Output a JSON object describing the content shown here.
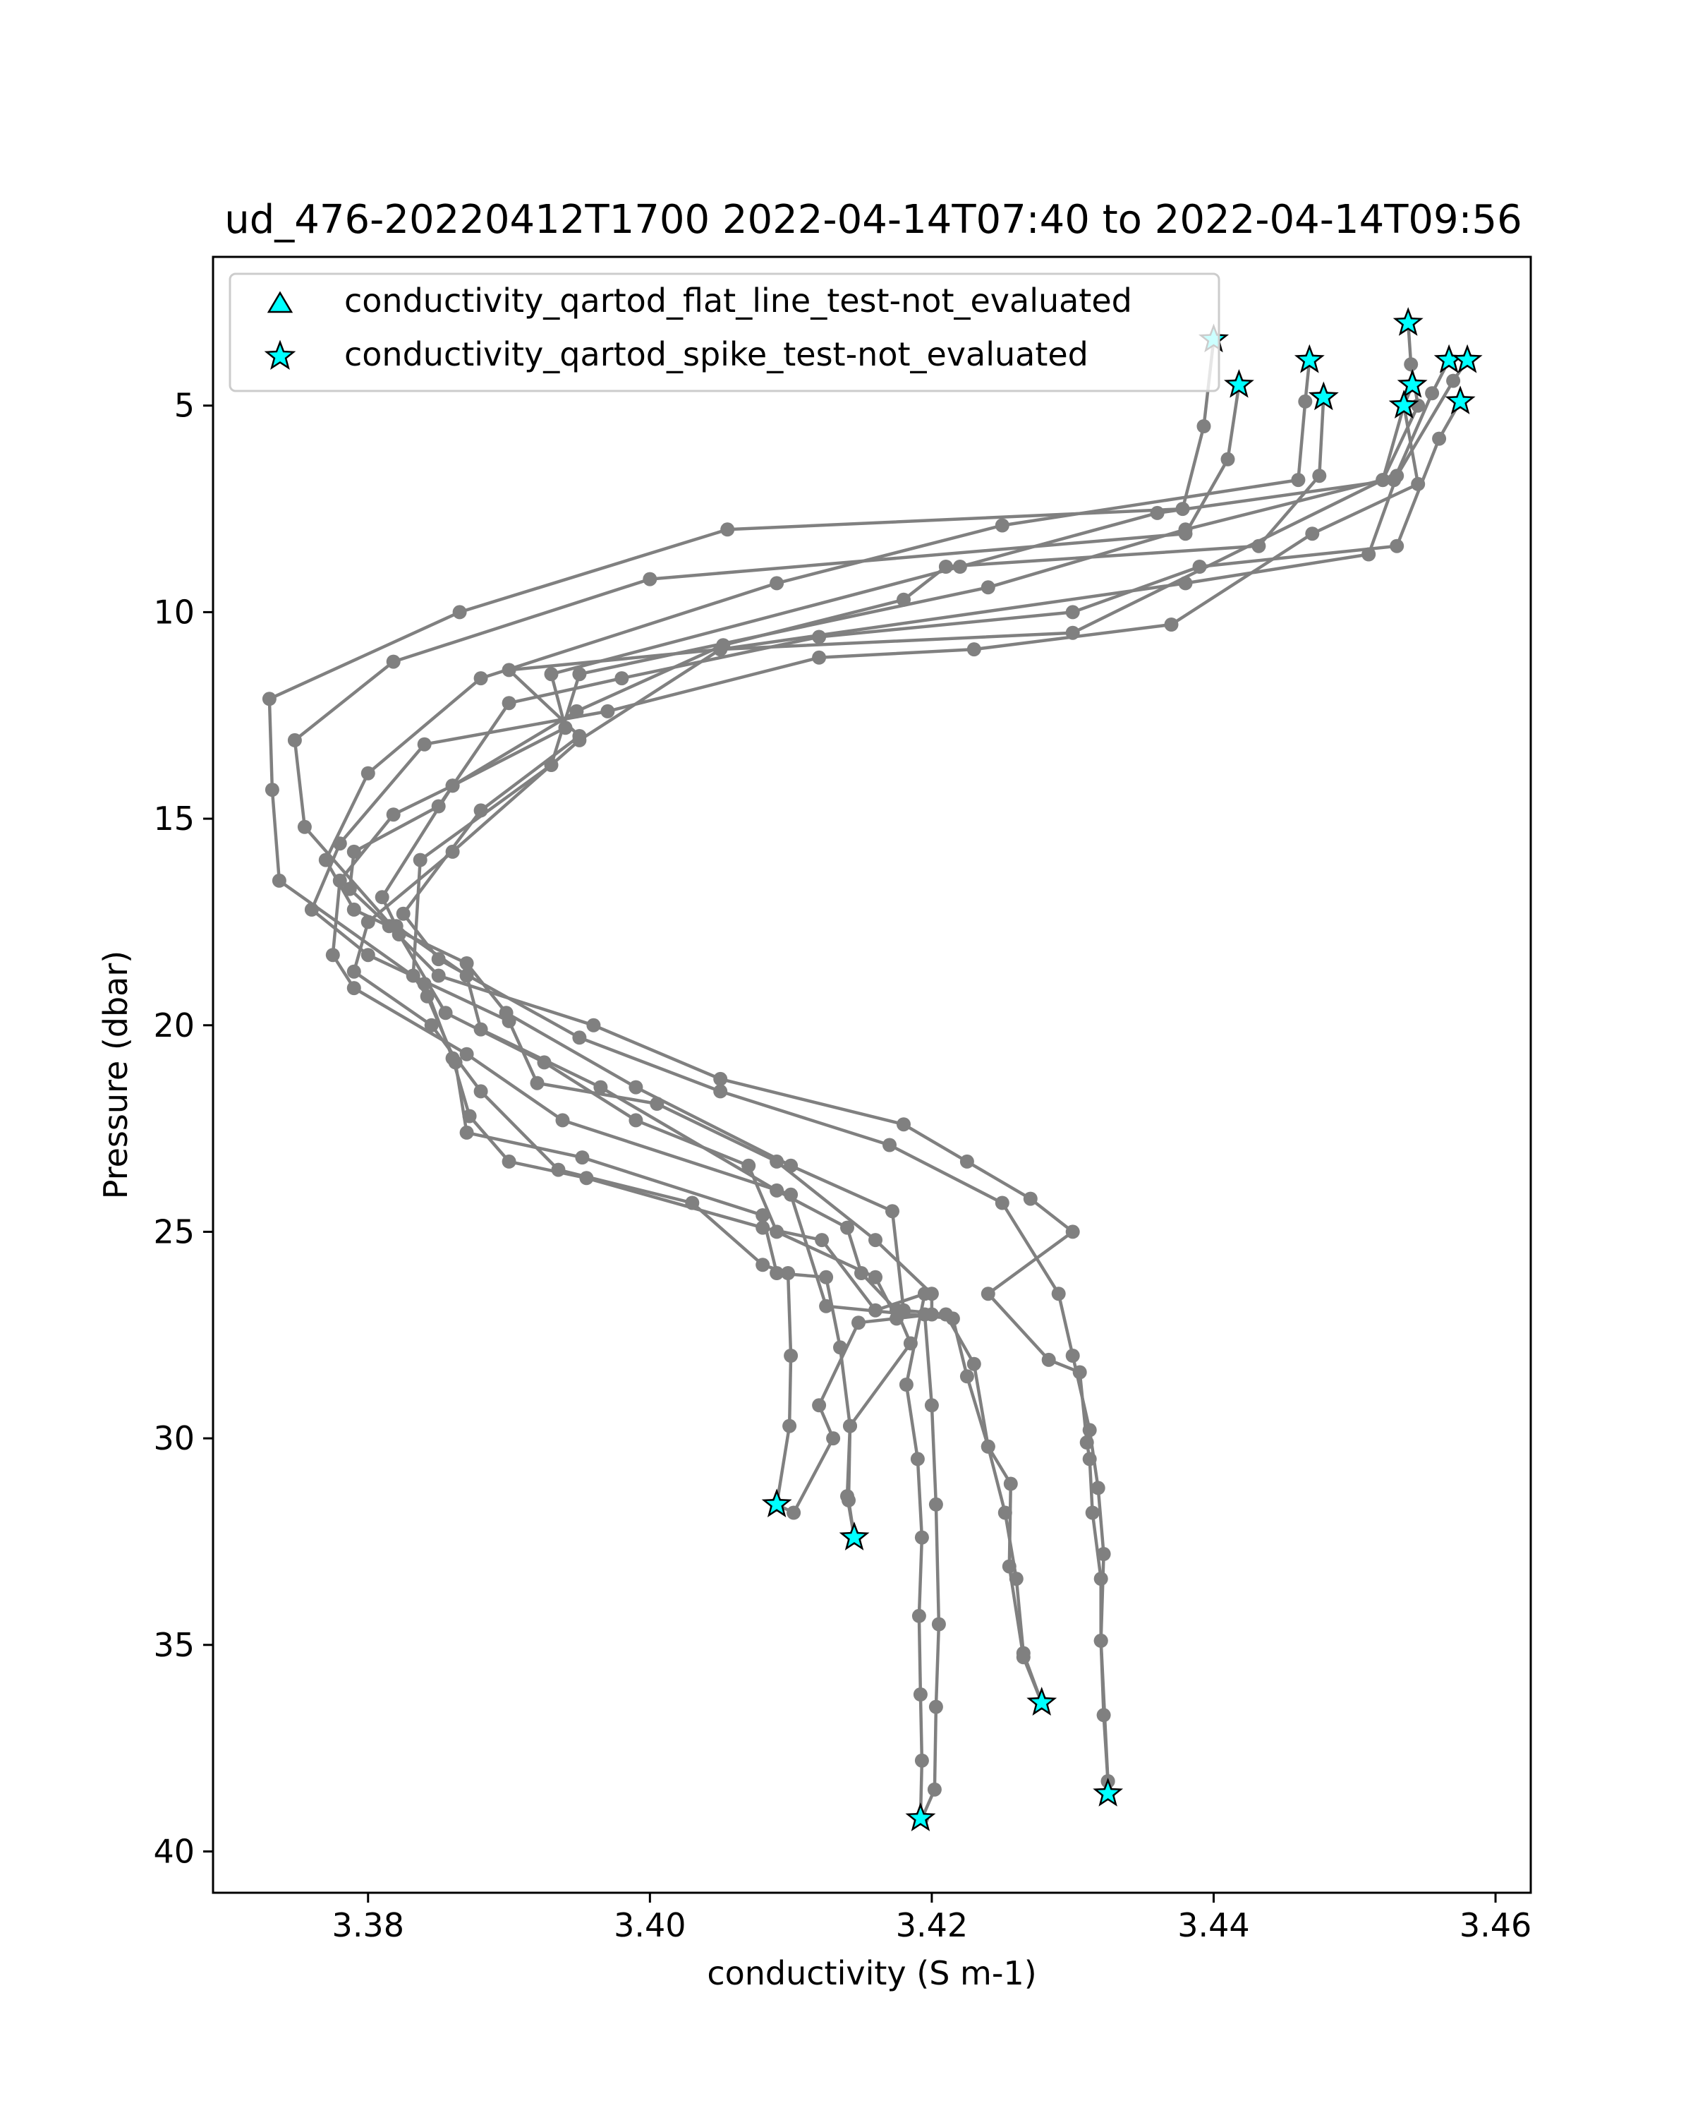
{
  "chart_data": {
    "type": "line",
    "title": "ud_476-20220412T1700 2022-04-14T07:40 to 2022-04-14T09:56",
    "xlabel": "conductivity (S m-1)",
    "ylabel": "Pressure (dbar)",
    "xlim": [
      3.369,
      3.4625
    ],
    "ylim": [
      41.0,
      1.4
    ],
    "y_inverted": true,
    "xticks": [
      3.38,
      3.4,
      3.42,
      3.44,
      3.46
    ],
    "xtick_labels": [
      "3.38",
      "3.40",
      "3.42",
      "3.44",
      "3.46"
    ],
    "yticks": [
      5,
      10,
      15,
      20,
      25,
      30,
      35,
      40
    ],
    "ytick_labels": [
      "5",
      "10",
      "15",
      "20",
      "25",
      "30",
      "35",
      "40"
    ],
    "grid": false,
    "legend_placement": "upper-left",
    "legend": [
      {
        "label": "conductivity_qartod_flat_line_test-not_evaluated",
        "marker": "triangle",
        "color": "#00ffff"
      },
      {
        "label": "conductivity_qartod_spike_test-not_evaluated",
        "marker": "star",
        "color": "#00ffff"
      }
    ],
    "line_color": "#808080",
    "marker_color": "#00ffff",
    "series": [
      {
        "points": [
          [
            3.44,
            3.4
          ],
          [
            3.4393,
            5.5
          ],
          [
            3.4378,
            7.5
          ],
          [
            3.4055,
            8.0
          ],
          [
            3.3865,
            10.0
          ],
          [
            3.373,
            12.1
          ],
          [
            3.3732,
            14.3
          ],
          [
            3.3737,
            16.5
          ],
          [
            3.384,
            19.0
          ],
          [
            3.386,
            20.8
          ],
          [
            3.3872,
            22.2
          ],
          [
            3.39,
            23.3
          ],
          [
            3.3955,
            23.7
          ],
          [
            3.408,
            24.9
          ],
          [
            3.4122,
            25.2
          ],
          [
            3.416,
            26.9
          ],
          [
            3.4195,
            26.5
          ],
          [
            3.4182,
            28.7
          ],
          [
            3.419,
            30.5
          ],
          [
            3.4193,
            32.4
          ],
          [
            3.4191,
            34.3
          ],
          [
            3.4192,
            36.2
          ],
          [
            3.4193,
            37.8
          ],
          [
            3.4192,
            39.2
          ]
        ]
      },
      {
        "points": [
          [
            3.4418,
            4.5
          ],
          [
            3.441,
            6.3
          ],
          [
            3.438,
            8.1
          ],
          [
            3.4,
            9.2
          ],
          [
            3.3818,
            11.2
          ],
          [
            3.3748,
            13.1
          ],
          [
            3.3755,
            15.2
          ],
          [
            3.3822,
            17.8
          ],
          [
            3.3855,
            19.7
          ],
          [
            3.3925,
            20.9
          ],
          [
            3.399,
            22.3
          ],
          [
            3.407,
            23.4
          ],
          [
            3.409,
            25.0
          ],
          [
            3.416,
            26.1
          ],
          [
            3.4175,
            27.1
          ],
          [
            3.4195,
            27.0
          ],
          [
            3.42,
            29.2
          ],
          [
            3.4203,
            31.6
          ],
          [
            3.4205,
            34.5
          ],
          [
            3.4203,
            36.5
          ],
          [
            3.4202,
            38.5
          ],
          [
            3.4193,
            39.2
          ]
        ]
      },
      {
        "points": [
          [
            3.4468,
            3.9
          ],
          [
            3.4465,
            4.9
          ],
          [
            3.446,
            6.8
          ],
          [
            3.425,
            7.9
          ],
          [
            3.409,
            9.3
          ],
          [
            3.388,
            11.6
          ],
          [
            3.38,
            13.9
          ],
          [
            3.377,
            16.0
          ],
          [
            3.379,
            17.2
          ],
          [
            3.387,
            18.5
          ],
          [
            3.3898,
            19.7
          ],
          [
            3.399,
            21.5
          ],
          [
            3.41,
            23.4
          ],
          [
            3.4172,
            24.5
          ],
          [
            3.418,
            26.9
          ],
          [
            3.421,
            27.0
          ],
          [
            3.423,
            28.2
          ],
          [
            3.424,
            30.2
          ],
          [
            3.4256,
            31.1
          ],
          [
            3.4255,
            33.1
          ],
          [
            3.4265,
            35.3
          ],
          [
            3.4278,
            36.4
          ]
        ]
      },
      {
        "points": [
          [
            3.4478,
            4.8
          ],
          [
            3.4475,
            6.7
          ],
          [
            3.4432,
            8.4
          ],
          [
            3.421,
            8.9
          ],
          [
            3.418,
            9.7
          ],
          [
            3.4052,
            10.8
          ],
          [
            3.3948,
            12.4
          ],
          [
            3.386,
            14.2
          ],
          [
            3.3818,
            14.9
          ],
          [
            3.378,
            16.5
          ],
          [
            3.3775,
            18.3
          ],
          [
            3.379,
            19.1
          ],
          [
            3.387,
            20.7
          ],
          [
            3.3938,
            22.3
          ],
          [
            3.41,
            24.1
          ],
          [
            3.4125,
            26.8
          ],
          [
            3.4215,
            27.1
          ],
          [
            3.4225,
            28.5
          ],
          [
            3.424,
            30.2
          ],
          [
            3.4252,
            31.8
          ],
          [
            3.426,
            33.4
          ],
          [
            3.4265,
            35.2
          ],
          [
            3.4278,
            36.4
          ]
        ]
      },
      {
        "points": [
          [
            3.4538,
            3.0
          ],
          [
            3.454,
            4.0
          ],
          [
            3.4545,
            5.0
          ],
          [
            3.452,
            6.8
          ],
          [
            3.438,
            8.0
          ],
          [
            3.424,
            9.4
          ],
          [
            3.395,
            11.5
          ],
          [
            3.393,
            13.7
          ],
          [
            3.3837,
            16.0
          ],
          [
            3.3832,
            18.8
          ],
          [
            3.3842,
            19.3
          ],
          [
            3.3862,
            20.9
          ],
          [
            3.387,
            22.6
          ],
          [
            3.3952,
            23.2
          ],
          [
            3.408,
            24.6
          ],
          [
            3.409,
            26.0
          ],
          [
            3.4125,
            26.1
          ],
          [
            3.4135,
            27.8
          ],
          [
            3.4142,
            29.7
          ],
          [
            3.4141,
            31.5
          ],
          [
            3.4145,
            32.4
          ]
        ]
      },
      {
        "points": [
          [
            3.4567,
            3.9
          ],
          [
            3.4555,
            4.7
          ],
          [
            3.4528,
            6.8
          ],
          [
            3.436,
            7.6
          ],
          [
            3.422,
            8.9
          ],
          [
            3.393,
            11.5
          ],
          [
            3.394,
            12.8
          ],
          [
            3.386,
            14.2
          ],
          [
            3.381,
            16.9
          ],
          [
            3.382,
            17.6
          ],
          [
            3.387,
            18.8
          ],
          [
            3.388,
            20.1
          ],
          [
            3.3965,
            21.5
          ],
          [
            3.409,
            24.0
          ],
          [
            3.414,
            24.9
          ],
          [
            3.415,
            26.0
          ],
          [
            3.4175,
            26.9
          ],
          [
            3.4185,
            27.7
          ],
          [
            3.4142,
            29.7
          ],
          [
            3.414,
            31.4
          ],
          [
            3.4145,
            32.4
          ]
        ]
      },
      {
        "points": [
          [
            3.4541,
            4.5
          ],
          [
            3.4535,
            5.0
          ],
          [
            3.4545,
            6.9
          ],
          [
            3.447,
            8.1
          ],
          [
            3.437,
            10.3
          ],
          [
            3.423,
            10.9
          ],
          [
            3.412,
            11.1
          ],
          [
            3.397,
            12.4
          ],
          [
            3.384,
            13.2
          ],
          [
            3.378,
            15.6
          ],
          [
            3.376,
            17.2
          ],
          [
            3.38,
            18.3
          ],
          [
            3.39,
            19.9
          ],
          [
            3.392,
            21.4
          ],
          [
            3.4005,
            21.9
          ],
          [
            3.409,
            23.3
          ],
          [
            3.416,
            25.2
          ],
          [
            3.42,
            26.5
          ],
          [
            3.42,
            27.0
          ],
          [
            3.4148,
            27.2
          ],
          [
            3.412,
            29.2
          ],
          [
            3.413,
            30.0
          ],
          [
            3.4102,
            31.8
          ],
          [
            3.409,
            31.6
          ]
        ]
      },
      {
        "points": [
          [
            3.4535,
            5.0
          ],
          [
            3.452,
            6.8
          ],
          [
            3.43,
            10.5
          ],
          [
            3.405,
            10.9
          ],
          [
            3.395,
            13.1
          ],
          [
            3.386,
            15.8
          ],
          [
            3.38,
            17.5
          ],
          [
            3.379,
            18.7
          ],
          [
            3.3845,
            20.0
          ],
          [
            3.388,
            21.6
          ],
          [
            3.3935,
            23.5
          ],
          [
            3.403,
            24.3
          ],
          [
            3.408,
            25.8
          ],
          [
            3.4098,
            26.0
          ],
          [
            3.41,
            28.0
          ],
          [
            3.4099,
            29.7
          ],
          [
            3.409,
            31.6
          ]
        ]
      },
      {
        "points": [
          [
            3.458,
            3.9
          ],
          [
            3.457,
            4.4
          ],
          [
            3.453,
            6.7
          ],
          [
            3.451,
            8.6
          ],
          [
            3.438,
            9.3
          ],
          [
            3.405,
            10.9
          ],
          [
            3.39,
            11.4
          ],
          [
            3.395,
            13.0
          ],
          [
            3.388,
            14.8
          ],
          [
            3.3825,
            17.3
          ],
          [
            3.385,
            18.4
          ],
          [
            3.395,
            20.3
          ],
          [
            3.405,
            21.6
          ],
          [
            3.417,
            22.9
          ],
          [
            3.425,
            24.3
          ],
          [
            3.429,
            26.5
          ],
          [
            3.43,
            28.0
          ],
          [
            3.4312,
            29.8
          ],
          [
            3.4318,
            31.2
          ],
          [
            3.4322,
            32.8
          ],
          [
            3.432,
            34.9
          ],
          [
            3.4322,
            36.7
          ],
          [
            3.4325,
            38.3
          ],
          [
            3.4325,
            38.6
          ]
        ]
      },
      {
        "points": [
          [
            3.4575,
            4.9
          ],
          [
            3.456,
            5.8
          ],
          [
            3.453,
            8.4
          ],
          [
            3.439,
            8.9
          ],
          [
            3.43,
            10.0
          ],
          [
            3.412,
            10.6
          ],
          [
            3.398,
            11.6
          ],
          [
            3.39,
            12.2
          ],
          [
            3.385,
            14.7
          ],
          [
            3.379,
            15.8
          ],
          [
            3.3787,
            16.7
          ],
          [
            3.3815,
            17.6
          ],
          [
            3.385,
            18.8
          ],
          [
            3.396,
            20.0
          ],
          [
            3.405,
            21.3
          ],
          [
            3.418,
            22.4
          ],
          [
            3.4225,
            23.3
          ],
          [
            3.427,
            24.2
          ],
          [
            3.43,
            25.0
          ],
          [
            3.424,
            26.5
          ],
          [
            3.4283,
            28.1
          ],
          [
            3.4305,
            28.4
          ],
          [
            3.431,
            30.1
          ],
          [
            3.4312,
            30.5
          ],
          [
            3.4314,
            31.8
          ],
          [
            3.432,
            33.4
          ],
          [
            3.432,
            34.9
          ],
          [
            3.4325,
            38.3
          ],
          [
            3.4325,
            38.6
          ]
        ]
      }
    ],
    "flagged_points": [
      [
        3.44,
        3.4
      ],
      [
        3.4418,
        4.5
      ],
      [
        3.4468,
        3.9
      ],
      [
        3.4478,
        4.8
      ],
      [
        3.4538,
        3.0
      ],
      [
        3.4567,
        3.9
      ],
      [
        3.4541,
        4.5
      ],
      [
        3.4535,
        5.0
      ],
      [
        3.458,
        3.9
      ],
      [
        3.4575,
        4.9
      ],
      [
        3.409,
        31.6
      ],
      [
        3.4145,
        32.4
      ],
      [
        3.4278,
        36.4
      ],
      [
        3.4192,
        39.2
      ],
      [
        3.4325,
        38.6
      ]
    ]
  }
}
